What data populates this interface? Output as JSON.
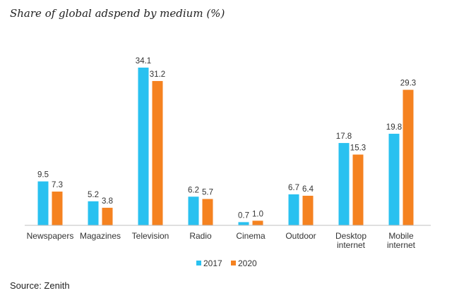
{
  "chart_data": {
    "type": "bar",
    "title": "Share of global adspend by medium (%)",
    "categories": [
      [
        "Newspapers"
      ],
      [
        "Magazines"
      ],
      [
        "Television"
      ],
      [
        "Radio"
      ],
      [
        "Cinema"
      ],
      [
        "Outdoor"
      ],
      [
        "Desktop",
        "internet"
      ],
      [
        "Mobile",
        "internet"
      ]
    ],
    "series": [
      {
        "name": "2017",
        "color": "#29c1f0",
        "values": [
          9.5,
          5.2,
          34.1,
          6.2,
          0.7,
          6.7,
          17.8,
          19.8
        ]
      },
      {
        "name": "2020",
        "color": "#f58220",
        "values": [
          7.3,
          3.8,
          31.2,
          5.7,
          1.0,
          6.4,
          15.3,
          29.3
        ]
      }
    ],
    "xlabel": "",
    "ylabel": "",
    "ylim": [
      0,
      35
    ],
    "grid": false,
    "legend_position": "bottom"
  },
  "source": "Source: Zenith"
}
